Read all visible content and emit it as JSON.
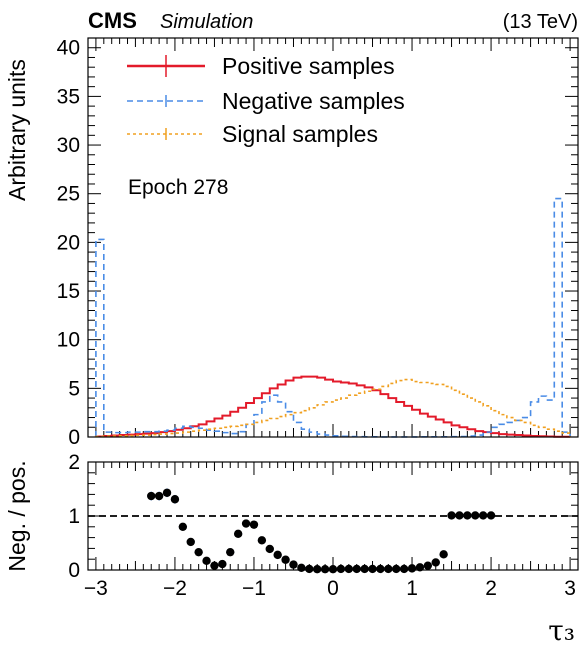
{
  "header": {
    "experiment": "CMS",
    "label": "Simulation",
    "energy": "(13 TeV)"
  },
  "annotation": "Epoch 278",
  "chart_data": [
    {
      "type": "histogram",
      "ylabel": "Arbitrary units",
      "xlim": [
        -3.1,
        3.1
      ],
      "ylim": [
        0,
        41
      ],
      "yticks": [
        0,
        5,
        10,
        15,
        20,
        25,
        30,
        35,
        40
      ],
      "yticklabels": [
        "0",
        "5",
        "10",
        "15",
        "20",
        "25",
        "30",
        "35",
        "40"
      ],
      "legend_position": "top-left",
      "bin_edges": [
        -3.0,
        -2.9,
        -2.8,
        -2.7,
        -2.6,
        -2.5,
        -2.4,
        -2.3,
        -2.2,
        -2.1,
        -2.0,
        -1.9,
        -1.8,
        -1.7,
        -1.6,
        -1.5,
        -1.4,
        -1.3,
        -1.2,
        -1.1,
        -1.0,
        -0.9,
        -0.8,
        -0.7,
        -0.6,
        -0.5,
        -0.4,
        -0.3,
        -0.2,
        -0.1,
        0.0,
        0.1,
        0.2,
        0.3,
        0.4,
        0.5,
        0.6,
        0.7,
        0.8,
        0.9,
        1.0,
        1.1,
        1.2,
        1.3,
        1.4,
        1.5,
        1.6,
        1.7,
        1.8,
        1.9,
        2.0,
        2.1,
        2.2,
        2.3,
        2.4,
        2.5,
        2.6,
        2.7,
        2.8,
        2.9,
        3.0
      ],
      "series": [
        {
          "name": "Positive samples",
          "color": "#e31a2a",
          "style": "solid",
          "values": [
            0.05,
            0.1,
            0.15,
            0.2,
            0.25,
            0.3,
            0.35,
            0.4,
            0.5,
            0.6,
            0.75,
            0.9,
            1.1,
            1.3,
            1.6,
            1.9,
            2.2,
            2.6,
            3.0,
            3.5,
            4.0,
            4.5,
            5.0,
            5.4,
            5.8,
            6.1,
            6.2,
            6.2,
            6.1,
            5.9,
            5.7,
            5.6,
            5.5,
            5.3,
            5.1,
            4.8,
            4.4,
            4.0,
            3.6,
            3.2,
            2.8,
            2.4,
            2.1,
            1.8,
            1.5,
            1.2,
            1.0,
            0.8,
            0.6,
            0.5,
            0.4,
            0.3,
            0.25,
            0.2,
            0.15,
            0.1,
            0.08,
            0.05,
            0.03,
            0.02
          ]
        },
        {
          "name": "Negative samples",
          "color": "#4a8ce6",
          "style": "dashed",
          "values": [
            20.3,
            0.5,
            0.45,
            0.45,
            0.5,
            0.5,
            0.55,
            0.55,
            0.6,
            0.7,
            0.9,
            1.1,
            1.0,
            0.9,
            0.7,
            0.6,
            0.45,
            0.35,
            0.55,
            1.3,
            2.3,
            3.6,
            4.3,
            3.6,
            2.6,
            1.5,
            0.8,
            0.5,
            0.3,
            0.2,
            0.12,
            0.07,
            0.05,
            0.03,
            0.02,
            0.02,
            0.01,
            0.01,
            0.01,
            0.01,
            0.01,
            0.02,
            0.02,
            0.02,
            0.02,
            0.03,
            0.05,
            0.1,
            0.2,
            0.5,
            1.0,
            1.3,
            1.5,
            1.7,
            2.0,
            3.6,
            4.2,
            3.8,
            24.5,
            0.5
          ]
        },
        {
          "name": "Signal samples",
          "color": "#f0a020",
          "style": "dotted",
          "values": [
            0.05,
            0.08,
            0.1,
            0.12,
            0.15,
            0.18,
            0.2,
            0.25,
            0.3,
            0.35,
            0.4,
            0.5,
            0.6,
            0.7,
            0.8,
            0.9,
            1.0,
            1.1,
            1.2,
            1.3,
            1.5,
            1.7,
            1.9,
            2.1,
            2.3,
            2.5,
            2.7,
            3.0,
            3.3,
            3.6,
            3.8,
            4.0,
            4.3,
            4.5,
            4.7,
            4.9,
            5.2,
            5.5,
            5.8,
            5.9,
            5.7,
            5.6,
            5.5,
            5.4,
            5.2,
            4.8,
            4.4,
            4.0,
            3.6,
            3.2,
            2.7,
            2.3,
            2.0,
            1.7,
            1.5,
            1.2,
            1.0,
            0.8,
            0.6,
            0.4
          ]
        }
      ]
    },
    {
      "type": "scatter",
      "ylabel": "Neg. / pos.",
      "xlabel": "τ₃",
      "xlim": [
        -3.1,
        3.1
      ],
      "ylim": [
        0,
        2
      ],
      "yticks": [
        0,
        1,
        2
      ],
      "yticklabels": [
        "0",
        "1",
        "2"
      ],
      "xticks": [
        -3,
        -2,
        -1,
        0,
        1,
        2,
        3
      ],
      "xticklabels": [
        "−3",
        "−2",
        "−1",
        "0",
        "1",
        "2",
        "3"
      ],
      "reference_line": 1.0,
      "points": {
        "x": [
          -2.3,
          -2.2,
          -2.1,
          -2.0,
          -1.9,
          -1.8,
          -1.7,
          -1.6,
          -1.5,
          -1.4,
          -1.3,
          -1.2,
          -1.1,
          -1.0,
          -0.9,
          -0.8,
          -0.7,
          -0.6,
          -0.5,
          -0.4,
          -0.3,
          -0.2,
          -0.1,
          0.0,
          0.1,
          0.2,
          0.3,
          0.4,
          0.5,
          0.6,
          0.7,
          0.8,
          0.9,
          1.0,
          1.1,
          1.2,
          1.3,
          1.4,
          1.5,
          1.6,
          1.7,
          1.8,
          1.9,
          2.0
        ],
        "y": [
          1.37,
          1.37,
          1.43,
          1.31,
          0.8,
          0.52,
          0.33,
          0.17,
          0.08,
          0.11,
          0.33,
          0.67,
          0.86,
          0.84,
          0.55,
          0.39,
          0.28,
          0.19,
          0.1,
          0.04,
          0.02,
          0.015,
          0.015,
          0.015,
          0.02,
          0.02,
          0.02,
          0.02,
          0.02,
          0.02,
          0.02,
          0.02,
          0.02,
          0.03,
          0.05,
          0.08,
          0.14,
          0.29,
          1.01,
          1.01,
          1.01,
          1.01,
          1.01,
          1.01
        ],
        "color": "#000000",
        "errorbar_color": "#4a8ce6"
      }
    }
  ]
}
